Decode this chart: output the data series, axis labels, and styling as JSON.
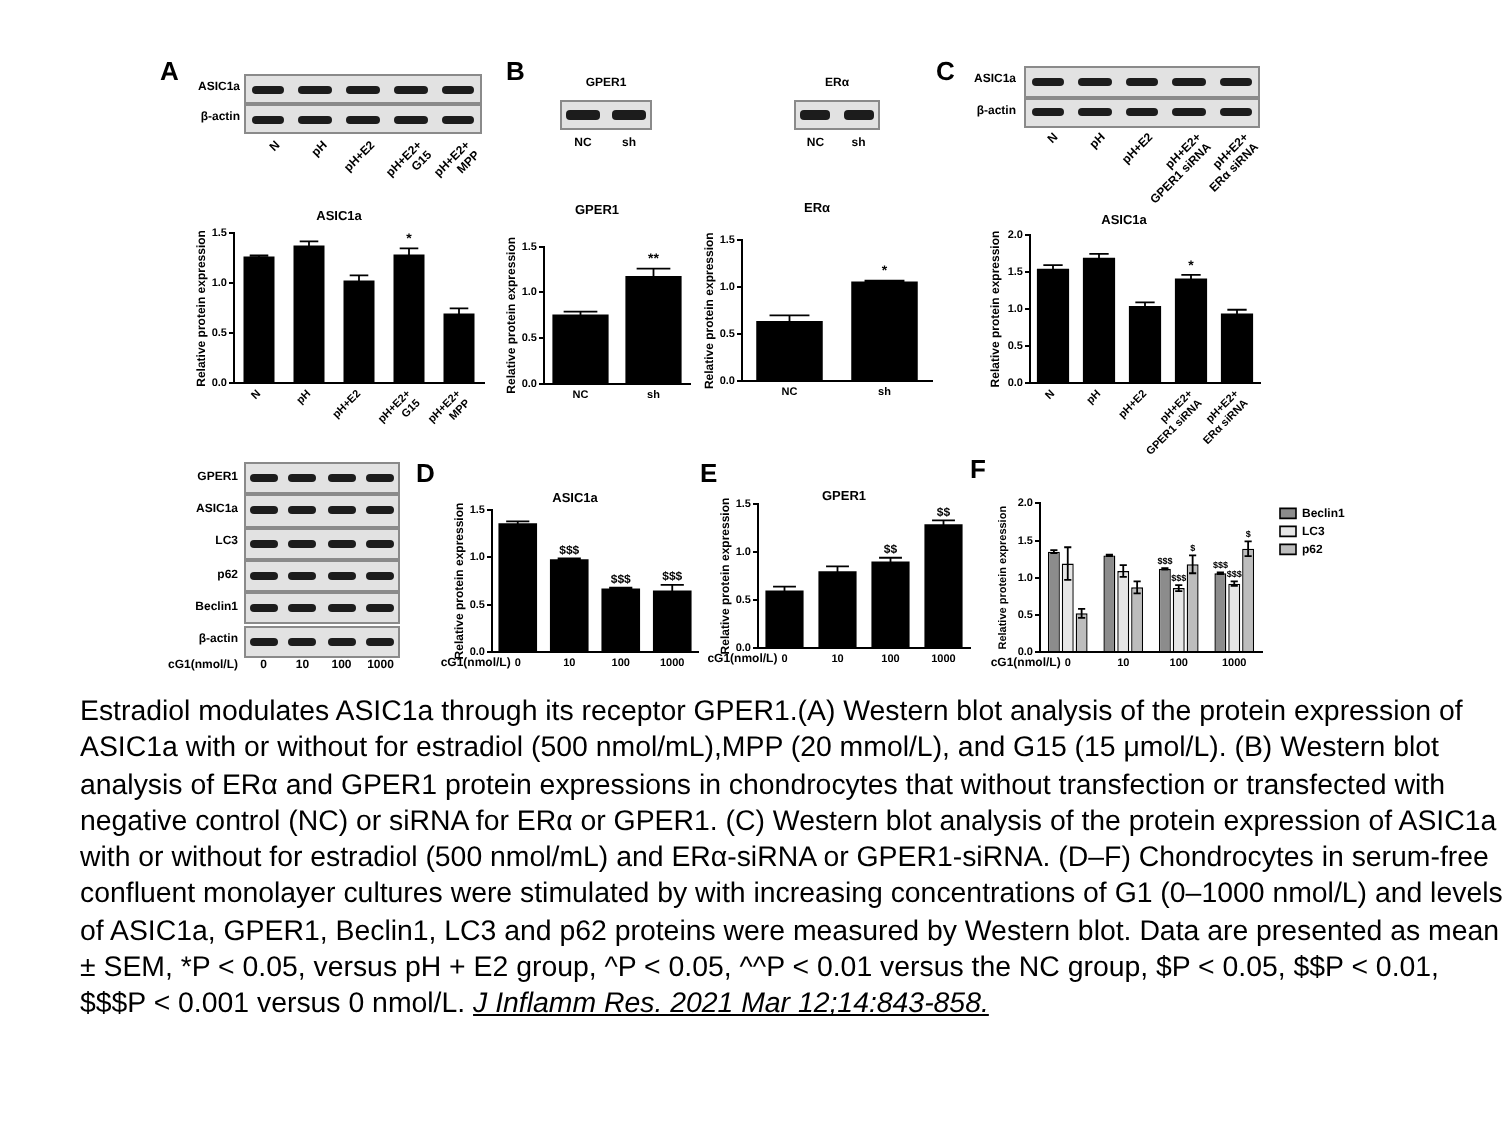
{
  "chart_data": [
    {
      "type": "other",
      "annotations": [
        "A"
      ],
      "y_categories": [
        "ASIC1a",
        "β-actin"
      ],
      "categories": [
        "N",
        "pH",
        "pH+E2",
        "pH+E2+\nG15",
        "pH+E2+\nMPP"
      ]
    },
    {
      "type": "other",
      "annotations": [
        "B"
      ],
      "title": "GPER1",
      "categories": [
        "NC",
        "sh"
      ]
    },
    {
      "type": "other",
      "title": "ERα",
      "categories": [
        "NC",
        "sh"
      ]
    },
    {
      "type": "other",
      "annotations": [
        "C"
      ],
      "y_categories": [
        "ASIC1a",
        "β-actin"
      ],
      "categories": [
        "N",
        "pH",
        "pH+E2",
        "pH+E2+\nGPER1 siRNA",
        "pH+E2+\nERα siRNA"
      ]
    },
    {
      "type": "bar",
      "title": "ASIC1a",
      "ylabel": "Relative protein expression",
      "categories": [
        "N",
        "pH",
        "pH+E2",
        "pH+E2+\nG15",
        "pH+E2+\nMPP"
      ],
      "values": [
        1.27,
        1.38,
        1.03,
        1.29,
        0.7
      ],
      "errors": [
        0.01,
        0.04,
        0.05,
        0.06,
        0.05
      ],
      "color": "#000000",
      "ylim": [
        0,
        1.5
      ],
      "yticks": [
        {
          "value": 0,
          "label": "0.0"
        },
        {
          "value": 0.5,
          "label": "0.5"
        },
        {
          "value": 1,
          "label": "1.0"
        },
        {
          "value": 1.5,
          "label": "1.5"
        }
      ],
      "annotations": [
        {
          "text": "*",
          "x": "pH+E2+\nG15",
          "y": 1.35
        }
      ]
    },
    {
      "type": "bar",
      "title": "GPER1",
      "ylabel": "Relative protein expression",
      "categories": [
        "NC",
        "sh"
      ],
      "values": [
        0.76,
        1.18
      ],
      "errors": [
        0.03,
        0.08
      ],
      "color": "#000000",
      "ylim": [
        0,
        1.5
      ],
      "yticks": [
        {
          "value": 0,
          "label": "0.0"
        },
        {
          "value": 0.5,
          "label": "0.5"
        },
        {
          "value": 1,
          "label": "1.0"
        },
        {
          "value": 1.5,
          "label": "1.5"
        }
      ],
      "annotations": [
        {
          "text": "**",
          "x": "sh",
          "y": 1.26
        }
      ]
    },
    {
      "type": "bar",
      "title": "ERα",
      "ylabel": "Relative protein expression",
      "categories": [
        "NC",
        "sh"
      ],
      "values": [
        0.64,
        1.06
      ],
      "errors": [
        0.06,
        0.01
      ],
      "color": "#000000",
      "ylim": [
        0,
        1.5
      ],
      "yticks": [
        {
          "value": 0,
          "label": "0.0"
        },
        {
          "value": 0.5,
          "label": "0.5"
        },
        {
          "value": 1,
          "label": "1.0"
        },
        {
          "value": 1.5,
          "label": "1.5"
        }
      ],
      "annotations": [
        {
          "text": "*",
          "x": "sh",
          "y": 1.07
        }
      ]
    },
    {
      "type": "bar",
      "title": "ASIC1a",
      "ylabel": "Relative protein expression",
      "categories": [
        "N",
        "pH",
        "pH+E2",
        "pH+E2+\nGPER1 siRNA",
        "pH+E2+\nERα siRNA"
      ],
      "values": [
        1.54,
        1.69,
        1.04,
        1.41,
        0.94
      ],
      "errors": [
        0.05,
        0.05,
        0.05,
        0.05,
        0.05
      ],
      "color": "#000000",
      "ylim": [
        0,
        2
      ],
      "yticks": [
        {
          "value": 0,
          "label": "0.0"
        },
        {
          "value": 0.5,
          "label": "0.5"
        },
        {
          "value": 1,
          "label": "1.0"
        },
        {
          "value": 1.5,
          "label": "1.5"
        },
        {
          "value": 2,
          "label": "2.0"
        }
      ],
      "annotations": [
        {
          "text": "*",
          "x": "pH+E2+\nGPER1 siRNA",
          "y": 1.46
        }
      ]
    },
    {
      "type": "other",
      "y_categories": [
        "GPER1",
        "ASIC1a",
        "LC3",
        "p62",
        "Beclin1",
        "β-actin"
      ],
      "xlabel": "cG1(nmol/L)",
      "categories": [
        "0",
        "10",
        "100",
        "1000"
      ]
    },
    {
      "type": "bar",
      "title": "ASIC1a",
      "ylabel": "Relative protein expression",
      "xlabel": "cG1(nmol/L)",
      "categories": [
        "0",
        "10",
        "100",
        "1000"
      ],
      "values": [
        1.36,
        0.98,
        0.67,
        0.65
      ],
      "errors": [
        0.02,
        0.01,
        0.01,
        0.06
      ],
      "color": "#000000",
      "ylim": [
        0,
        1.5
      ],
      "yticks": [
        {
          "value": 0,
          "label": "0.0"
        },
        {
          "value": 0.5,
          "label": "0.5"
        },
        {
          "value": 1,
          "label": "1.0"
        },
        {
          "value": 1.5,
          "label": "1.5"
        }
      ],
      "annotations": [
        "D",
        {
          "text": "$$$",
          "x": "10",
          "y": 0.99
        },
        {
          "text": "$$$",
          "x": "100",
          "y": 0.68
        },
        {
          "text": "$$$",
          "x": "1000",
          "y": 0.71
        }
      ]
    },
    {
      "type": "bar",
      "title": "GPER1",
      "ylabel": "Relative protein expression",
      "xlabel": "cG1(nmol/L)",
      "categories": [
        "0",
        "10",
        "100",
        "1000"
      ],
      "values": [
        0.6,
        0.8,
        0.9,
        1.29
      ],
      "errors": [
        0.04,
        0.05,
        0.04,
        0.04
      ],
      "color": "#000000",
      "ylim": [
        0,
        1.5
      ],
      "yticks": [
        {
          "value": 0,
          "label": "0.0"
        },
        {
          "value": 0.5,
          "label": "0.5"
        },
        {
          "value": 1,
          "label": "1.0"
        },
        {
          "value": 1.5,
          "label": "1.5"
        }
      ],
      "annotations": [
        "E",
        {
          "text": "$$",
          "x": "100",
          "y": 0.94
        },
        {
          "text": "$$",
          "x": "1000",
          "y": 1.33
        }
      ]
    },
    {
      "type": "bar",
      "ylabel": "Relative protein expression",
      "xlabel": "cG1(nmol/L)",
      "categories": [
        "0",
        "10",
        "100",
        "1000"
      ],
      "series": [
        {
          "name": "Beclin1",
          "color": "#8c8c8c",
          "values": [
            1.35,
            1.3,
            1.12,
            1.06
          ],
          "errors": [
            0.02,
            0.01,
            0.01,
            0.01
          ]
        },
        {
          "name": "LC3",
          "color": "#e6e6e6",
          "values": [
            1.19,
            1.09,
            0.86,
            0.92
          ],
          "errors": [
            0.22,
            0.08,
            0.04,
            0.03
          ]
        },
        {
          "name": "p62",
          "color": "#bdbdbd",
          "values": [
            0.52,
            0.87,
            1.18,
            1.39
          ],
          "errors": [
            0.06,
            0.08,
            0.12,
            0.1
          ]
        }
      ],
      "ylim": [
        0,
        2
      ],
      "yticks": [
        {
          "value": 0,
          "label": "0.0"
        },
        {
          "value": 0.5,
          "label": "0.5"
        },
        {
          "value": 1,
          "label": "1.0"
        },
        {
          "value": 1.5,
          "label": "1.5"
        },
        {
          "value": 2,
          "label": "2.0"
        }
      ],
      "legend": "top right",
      "annotations": [
        "F",
        "$$$",
        "$$$",
        "$",
        "$$$",
        "$$$",
        "$"
      ]
    },
    {
      "type": "other",
      "annotations": [
        "Estradiol modulates ASIC1a through its receptor GPER1.(A) Western blot analysis of the protein expression of ASIC1a with or without for estradiol (500 nmol/mL),MPP (20 mmol/L), and G15 (15 μmol/L). (B) Western blot analysis of ERα and GPER1 protein expressions in chondrocytes that without transfection or transfected with negative control (NC) or siRNA for ERα or GPER1. (C) Western blot analysis of the protein expression of ASIC1a with or without for estradiol (500 nmol/mL) and ERα-siRNA or GPER1-siRNA. (D–F) Chondrocytes in serum-free confluent monolayer cultures were stimulated by with increasing concentrations of G1 (0–1000 nmol/L) and levels of ASIC1a, GPER1, Beclin1, LC3 and p62 proteins were measured by Western blot. Data are presented as mean ± SEM, *P < 0.05, versus pH + E2 group, ^P < 0.05, ^^P < 0.01 versus the NC group, $P < 0.05, $$P < 0.01, $$$P < 0.001 versus 0 nmol/L.",
        "J Inflamm Res. 2021 Mar 12;14:843-858."
      ]
    }
  ]
}
